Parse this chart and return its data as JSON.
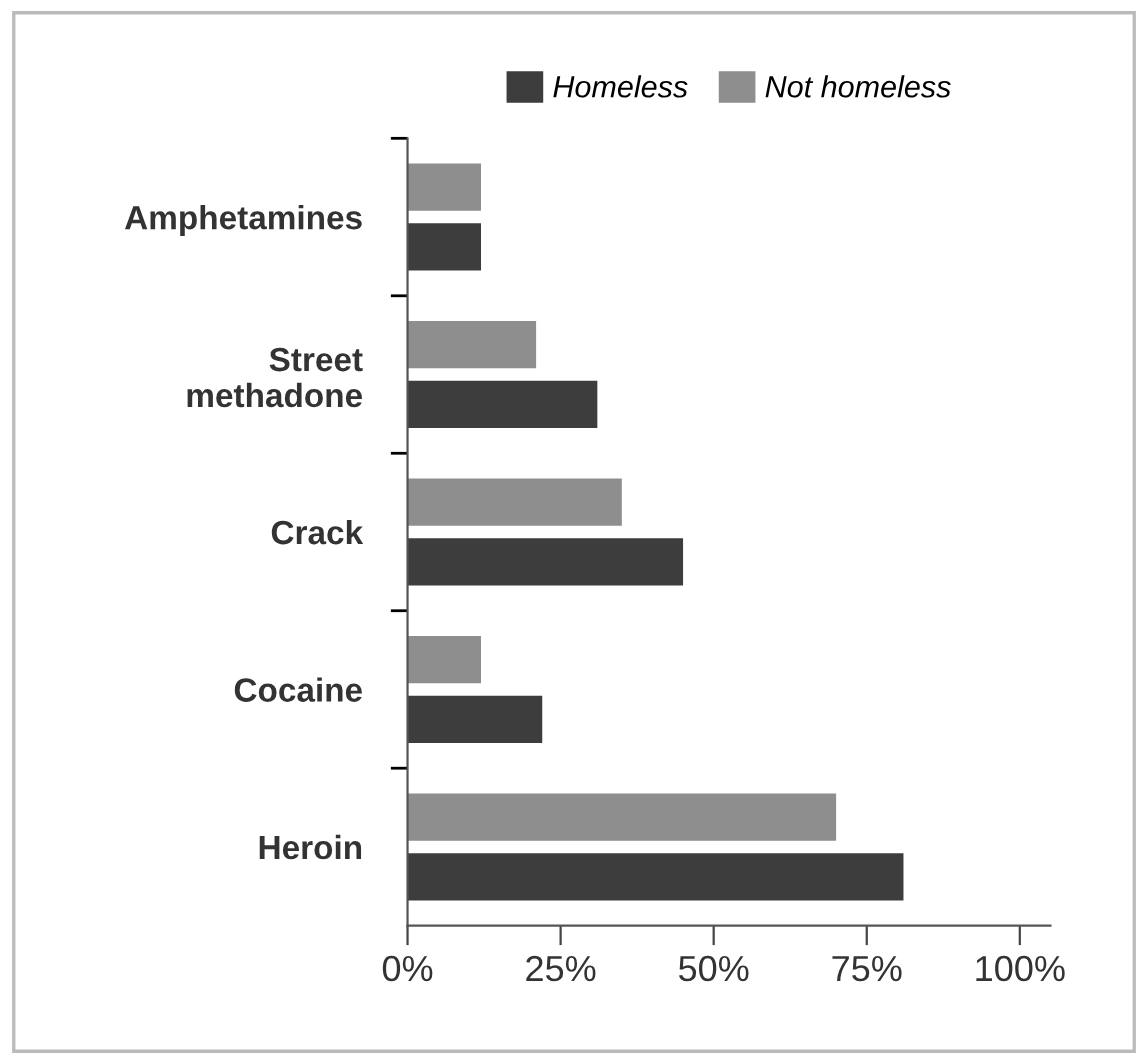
{
  "chart_data": {
    "type": "bar",
    "orientation": "horizontal",
    "categories": [
      "Amphetamines",
      "Street\nmethadone",
      "Crack",
      "Cocaine",
      "Heroin"
    ],
    "series": [
      {
        "name": "Homeless",
        "color": "#3d3d3d",
        "values": [
          12,
          31,
          45,
          22,
          81
        ]
      },
      {
        "name": "Not homeless",
        "color": "#8e8e8e",
        "values": [
          12,
          21,
          35,
          12,
          70
        ]
      }
    ],
    "xlim": [
      0,
      105
    ],
    "xticks": [
      {
        "value": 0,
        "label": "0%"
      },
      {
        "value": 25,
        "label": "25%"
      },
      {
        "value": 50,
        "label": "50%"
      },
      {
        "value": 75,
        "label": "75%"
      },
      {
        "value": 100,
        "label": "100%"
      }
    ],
    "legend": "top",
    "grid": false
  }
}
